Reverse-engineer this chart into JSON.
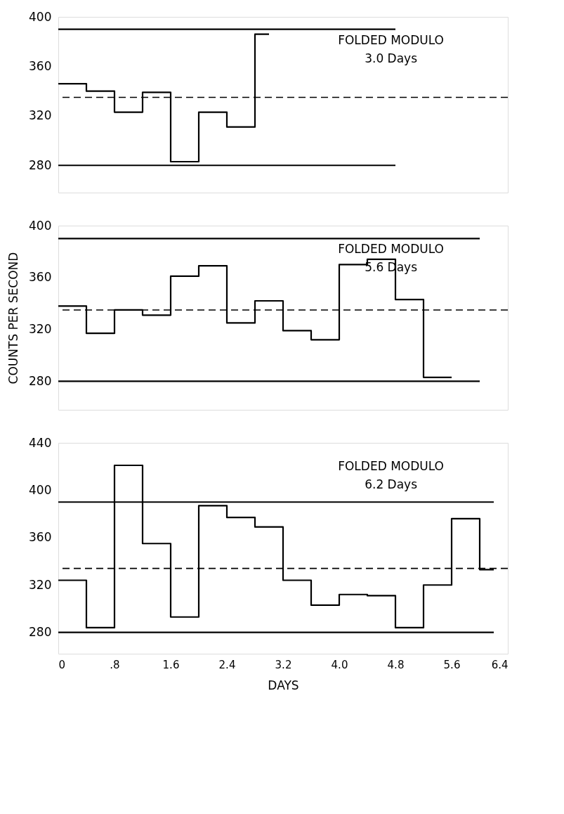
{
  "chart_data": [
    {
      "type": "step",
      "xlim": [
        0,
        6.4
      ],
      "ylim": [
        258,
        400
      ],
      "yticks": [
        280,
        320,
        360,
        400
      ],
      "tick_labels": "y",
      "grid": false,
      "line_style": "solid",
      "marker": "none",
      "annotations": [
        "FOLDED MODULO",
        "3.0 Days"
      ],
      "series": [
        {
          "color": "#000000",
          "x": [
            0,
            0.4,
            0.8,
            1.2,
            1.6,
            2.0,
            2.4,
            2.8,
            3.0
          ],
          "values": [
            346,
            340,
            323,
            339,
            283,
            323,
            311,
            386,
            386
          ]
        },
        {
          "type": "line",
          "color": "#000000",
          "x": [
            0,
            4.8
          ],
          "values": [
            390,
            390
          ]
        },
        {
          "type": "line",
          "color": "#000000",
          "x": [
            0,
            4.8
          ],
          "values": [
            280,
            280
          ]
        }
      ],
      "ref_lines": [
        {
          "axis": "y",
          "value": 335,
          "color": "#000000",
          "line_style": "dashed"
        }
      ]
    },
    {
      "type": "step",
      "xlim": [
        0,
        6.4
      ],
      "ylim": [
        258,
        400
      ],
      "yticks": [
        280,
        320,
        360,
        400
      ],
      "tick_labels": "y",
      "ylabel": "COUNTS PER SECOND",
      "grid": false,
      "line_style": "solid",
      "marker": "none",
      "annotations": [
        "FOLDED MODULO",
        "5.6 Days"
      ],
      "series": [
        {
          "color": "#000000",
          "x": [
            0,
            0.4,
            0.8,
            1.2,
            1.6,
            2.0,
            2.4,
            2.8,
            3.2,
            3.6,
            4.0,
            4.4,
            4.8,
            5.2,
            5.6
          ],
          "values": [
            338,
            317,
            335,
            331,
            361,
            369,
            325,
            342,
            319,
            312,
            370,
            374,
            343,
            283,
            283
          ]
        },
        {
          "type": "line",
          "color": "#000000",
          "x": [
            0,
            6.0
          ],
          "values": [
            390,
            390
          ]
        },
        {
          "type": "line",
          "color": "#000000",
          "x": [
            0,
            6.0
          ],
          "values": [
            280,
            280
          ]
        }
      ],
      "ref_lines": [
        {
          "axis": "y",
          "value": 335,
          "color": "#000000",
          "line_style": "dashed"
        }
      ]
    },
    {
      "type": "step",
      "xlim": [
        0,
        6.4
      ],
      "ylim": [
        262,
        440
      ],
      "yticks": [
        280,
        320,
        360,
        400,
        440
      ],
      "xlabel": "DAYS",
      "grid": false,
      "line_style": "solid",
      "marker": "none",
      "xticks": [
        0,
        {
          "value": 0.8,
          "label": ".8"
        },
        1.6,
        2.4,
        3.2,
        {
          "value": 4.0,
          "label": "4.0"
        },
        4.8,
        5.6,
        6.4
      ],
      "annotations": [
        "FOLDED MODULO",
        "6.2 Days"
      ],
      "series": [
        {
          "color": "#000000",
          "x": [
            0,
            0.4,
            0.8,
            1.2,
            1.6,
            2.0,
            2.4,
            2.8,
            3.2,
            3.6,
            4.0,
            4.4,
            4.8,
            5.2,
            5.6,
            6.0,
            6.2
          ],
          "values": [
            324,
            284,
            421,
            355,
            293,
            387,
            377,
            369,
            324,
            303,
            312,
            311,
            284,
            320,
            376,
            333,
            333
          ]
        },
        {
          "type": "line",
          "color": "#000000",
          "x": [
            0,
            6.2
          ],
          "values": [
            390,
            390
          ]
        },
        {
          "type": "line",
          "color": "#000000",
          "x": [
            0,
            6.2
          ],
          "values": [
            280,
            280
          ]
        }
      ],
      "ref_lines": [
        {
          "axis": "y",
          "value": 334,
          "color": "#000000",
          "line_style": "dashed"
        }
      ]
    }
  ]
}
